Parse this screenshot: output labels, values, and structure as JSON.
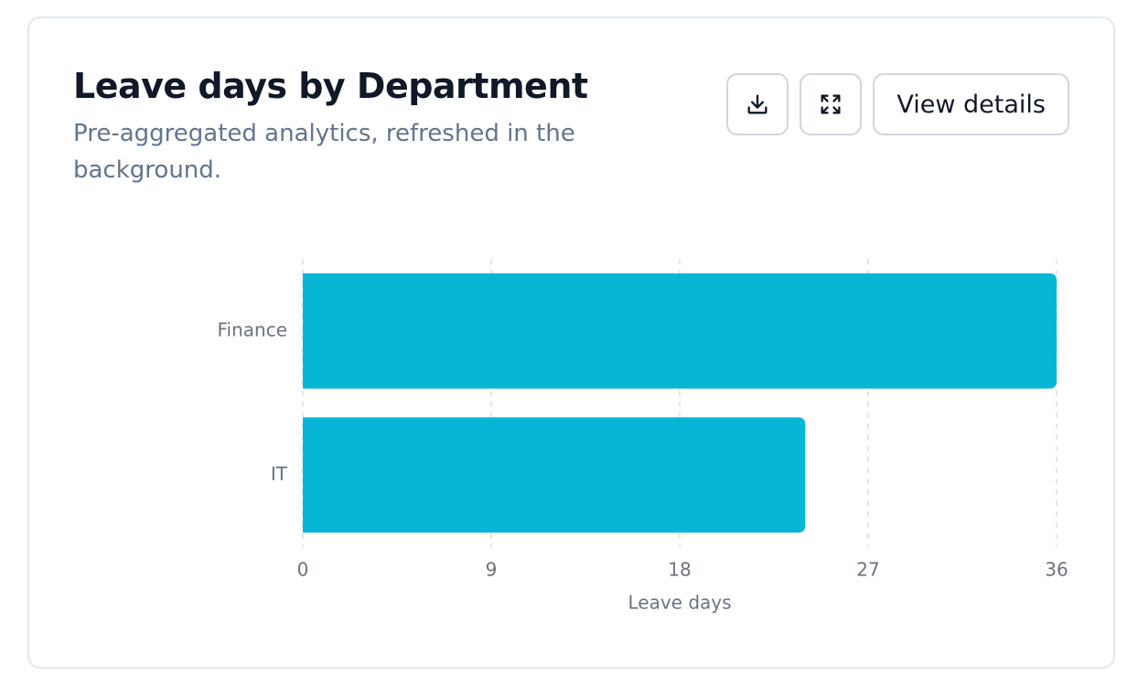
{
  "card": {
    "title": "Leave days by Department",
    "subtitle": "Pre-aggregated analytics, refreshed in the background.",
    "actions": {
      "download_icon": "download-icon",
      "expand_icon": "expand-icon",
      "view_details_label": "View details"
    }
  },
  "colors": {
    "bar": "#06b6d4",
    "grid": "#e5e7eb",
    "text_muted": "#64748b"
  },
  "chart_data": {
    "type": "bar",
    "orientation": "horizontal",
    "categories": [
      "Finance",
      "IT"
    ],
    "values": [
      36,
      24
    ],
    "xlabel": "Leave days",
    "ylabel": "",
    "xlim": [
      0,
      36
    ],
    "xticks": [
      0,
      9,
      18,
      27,
      36
    ],
    "grid": true
  }
}
